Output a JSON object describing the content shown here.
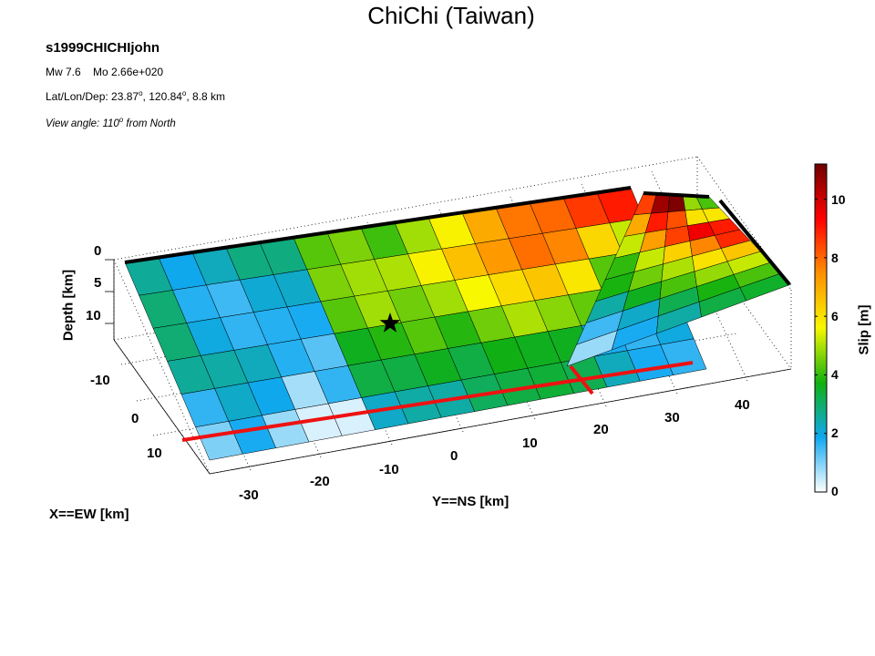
{
  "title": "ChiChi (Taiwan)",
  "event_id": "s1999CHICHIjohn",
  "magnitude": {
    "label": "Mw 7.6",
    "moment": "Mo 2.66e+020"
  },
  "location": {
    "prefix": "Lat/Lon/Dep: 23.87",
    "lon": ", 120.84",
    "dep": ", 8.8 km",
    "degree_mark": "o"
  },
  "view": {
    "prefix": "View angle: 110",
    "suffix": " from North",
    "degree_mark": "o"
  },
  "chart_data": {
    "type": "heatmap",
    "title": "ChiChi (Taiwan)",
    "x_axis": {
      "label": "X==EW [km]",
      "ticks": [
        "-10",
        "0",
        "10"
      ]
    },
    "y_axis": {
      "label": "Y==NS [km]",
      "ticks": [
        "-30",
        "-20",
        "-10",
        "0",
        "10",
        "20",
        "30",
        "40"
      ]
    },
    "z_axis": {
      "label": "Depth [km]",
      "ticks": [
        "0",
        "5",
        "10"
      ]
    },
    "colorbar": {
      "label": "Slip [m]",
      "range": [
        0,
        11.2
      ],
      "ticks": [
        "0",
        "2",
        "4",
        "6",
        "8",
        "10"
      ],
      "colormap": [
        "#ffffff",
        "#10a8f0",
        "#10b010",
        "#f8f800",
        "#ff9000",
        "#ff0000",
        "#700000"
      ]
    },
    "main_segment_slip": [
      [
        2.6,
        1.9,
        2.3,
        2.8,
        2.8,
        4.3,
        4.6,
        4.1,
        4.9,
        5.7,
        7.0,
        7.8,
        8.0,
        8.6,
        9.0
      ],
      [
        2.9,
        1.7,
        1.5,
        2.1,
        2.2,
        4.6,
        4.9,
        5.0,
        5.7,
        6.6,
        7.3,
        7.9,
        7.6,
        6.2,
        5.2
      ],
      [
        2.9,
        2.0,
        1.6,
        1.7,
        1.8,
        4.3,
        4.9,
        4.5,
        4.9,
        5.6,
        6.1,
        6.5,
        5.9,
        4.3,
        3.8
      ],
      [
        2.6,
        2.5,
        2.3,
        1.7,
        1.3,
        3.6,
        3.9,
        4.3,
        3.9,
        4.5,
        5.0,
        4.7,
        4.4,
        4.0,
        3.2
      ],
      [
        1.6,
        2.2,
        1.9,
        0.7,
        1.6,
        3.3,
        3.3,
        3.6,
        3.3,
        3.7,
        3.6,
        3.6,
        1.8,
        1.6,
        2.0
      ],
      [
        1.0,
        1.8,
        0.8,
        0.3,
        0.3,
        2.2,
        2.5,
        2.5,
        3.1,
        3.3,
        3.4,
        3.2,
        2.3,
        1.8,
        1.6
      ]
    ],
    "branch_segment_slip": [
      [
        8.5,
        10.6,
        11.0,
        4.8,
        4.2
      ],
      [
        7.0,
        9.0,
        8.3,
        6.0,
        5.9
      ],
      [
        5.2,
        7.2,
        8.5,
        9.5,
        9.0
      ],
      [
        4.0,
        5.2,
        6.3,
        7.6,
        8.8
      ],
      [
        3.8,
        4.5,
        5.0,
        6.0,
        6.5
      ],
      [
        2.5,
        3.6,
        4.2,
        4.8,
        5.2
      ],
      [
        1.5,
        2.2,
        3.2,
        3.8,
        4.2
      ],
      [
        0.8,
        1.8,
        2.5,
        3.3,
        3.5
      ]
    ],
    "hypocenter": {
      "lat": "23.87",
      "lon": "120.84",
      "depth_km": 8.8
    }
  }
}
